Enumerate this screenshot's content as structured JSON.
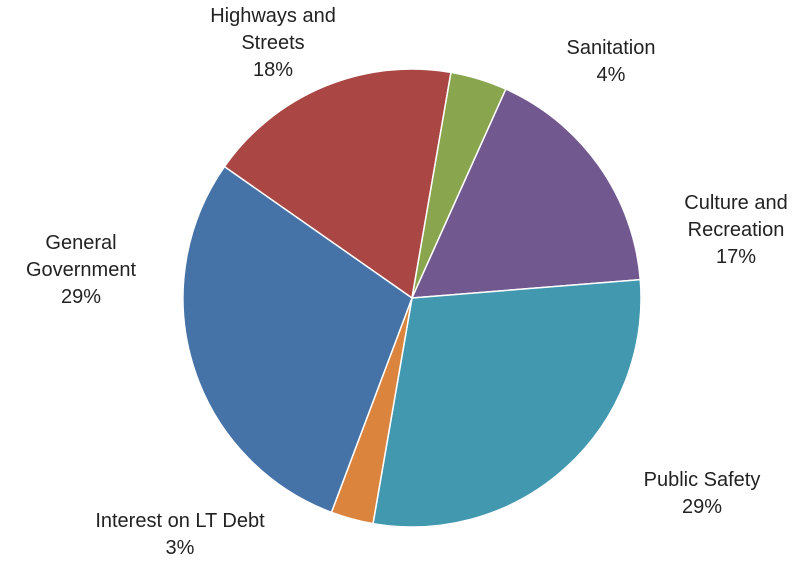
{
  "chart_data": {
    "type": "pie",
    "title": "",
    "slices": [
      {
        "label_lines": [
          "Highways and",
          "Streets"
        ],
        "percent_label": "18%",
        "value": 18,
        "color": "#AA4744"
      },
      {
        "label_lines": [
          "Sanitation"
        ],
        "percent_label": "4%",
        "value": 4,
        "color": "#89A54E"
      },
      {
        "label_lines": [
          "Culture and",
          "Recreation"
        ],
        "percent_label": "17%",
        "value": 17,
        "color": "#71588F"
      },
      {
        "label_lines": [
          "Public Safety"
        ],
        "percent_label": "29%",
        "value": 29,
        "color": "#4198AF"
      },
      {
        "label_lines": [
          "Interest on LT Debt"
        ],
        "percent_label": "3%",
        "value": 3,
        "color": "#DB843D"
      },
      {
        "label_lines": [
          "General",
          "Government"
        ],
        "percent_label": "29%",
        "value": 29,
        "color": "#4572A7"
      }
    ]
  }
}
